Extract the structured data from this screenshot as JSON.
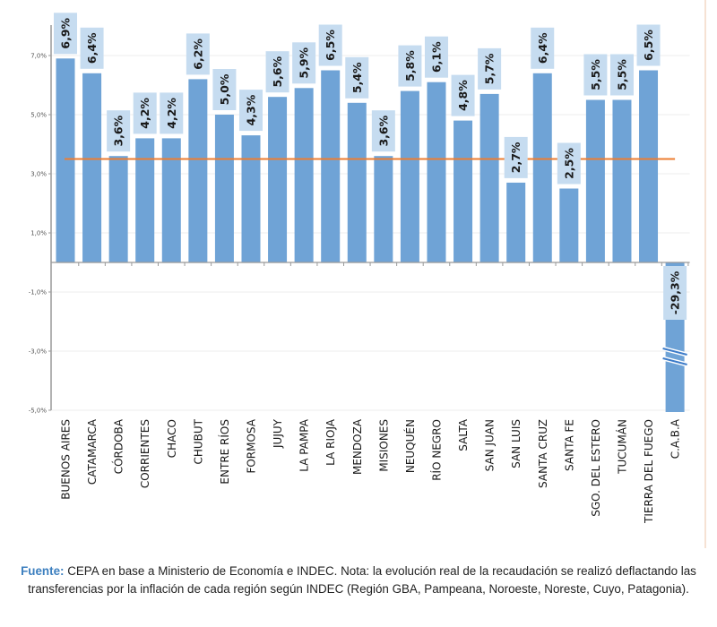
{
  "chart_data": {
    "type": "bar",
    "title": "",
    "xlabel": "",
    "ylabel": "",
    "categories": [
      "BUENOS AIRES",
      "CATAMARCA",
      "CÓRDOBA",
      "CORRIENTES",
      "CHACO",
      "CHUBUT",
      "ENTRE RÍOS",
      "FORMOSA",
      "JUJUY",
      "LA PAMPA",
      "LA RIOJA",
      "MENDOZA",
      "MISIONES",
      "NEUQUÉN",
      "RÍO NEGRO",
      "SALTA",
      "SAN JUAN",
      "SAN LUIS",
      "SANTA CRUZ",
      "SANTA FE",
      "SGO. DEL ESTERO",
      "TUCUMÁN",
      "TIERRA DEL FUEGO",
      "C.A.B.A"
    ],
    "values": [
      6.9,
      6.4,
      3.6,
      4.2,
      4.2,
      6.2,
      5.0,
      4.3,
      5.6,
      5.9,
      6.5,
      5.4,
      3.6,
      5.8,
      6.1,
      4.8,
      5.7,
      2.7,
      6.4,
      2.5,
      5.5,
      5.5,
      6.5,
      -29.3
    ],
    "data_labels": [
      "6,9%",
      "6,4%",
      "3,6%",
      "4,2%",
      "4,2%",
      "6,2%",
      "5,0%",
      "4,3%",
      "5,6%",
      "5,9%",
      "6,5%",
      "5,4%",
      "3,6%",
      "5,8%",
      "6,1%",
      "4,8%",
      "5,7%",
      "2,7%",
      "6,4%",
      "2,5%",
      "5,5%",
      "5,5%",
      "6,5%",
      "-29,3%"
    ],
    "broken_axis_categories": [
      "C.A.B.A"
    ],
    "reference_line": {
      "value": 3.5,
      "label": "",
      "color": "#ed7d31"
    },
    "ylim": [
      -5.0,
      7.0
    ],
    "yticks": [
      7.0,
      5.0,
      3.0,
      1.0,
      -1.0,
      -3.0,
      -5.0
    ],
    "ytick_labels": [
      "7,0%",
      "5,0%",
      "3,0%",
      "1,0%",
      "-1,0%",
      "-3,0%",
      "-5,0%"
    ],
    "grid": true,
    "legend": "none",
    "colors": {
      "bar": "#6fa3d6",
      "label_box": "#c6dcf0",
      "reference": "#ed7d31",
      "axis": "#999999",
      "grid": "#eeeeee"
    }
  },
  "footer": {
    "source_label": "Fuente:",
    "text": " CEPA en base a Ministerio de Economía e INDEC. Nota: la evolución real de la recaudación se realizó deflactando las transferencias por la inflación de cada región según INDEC (Región GBA, Pampeana, Noroeste, Noreste, Cuyo, Patagonia)."
  }
}
